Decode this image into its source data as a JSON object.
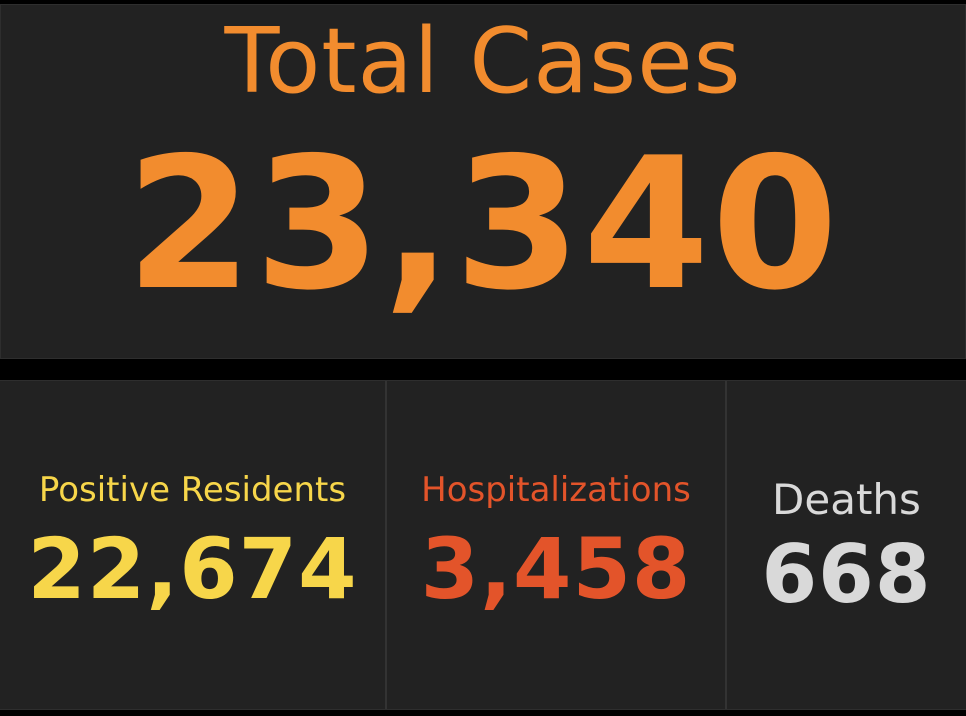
{
  "total": {
    "title": "Total Cases",
    "value": "23,340",
    "color": "#f28c2e"
  },
  "stats": {
    "positive": {
      "label": "Positive Residents",
      "value": "22,674",
      "color": "#f7d64a"
    },
    "hospitalizations": {
      "label": "Hospitalizations",
      "value": "3,458",
      "color": "#e3542a"
    },
    "deaths": {
      "label": "Deaths",
      "value": "668",
      "color": "#d9d9d9"
    }
  }
}
